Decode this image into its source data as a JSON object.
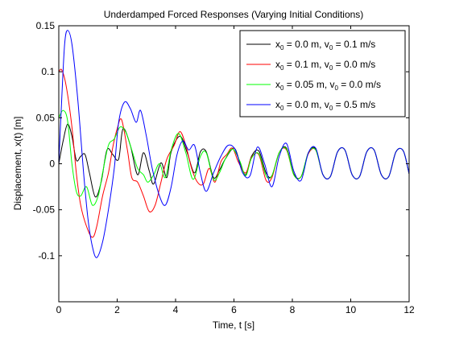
{
  "chart_data": {
    "type": "line",
    "title": "Underdamped Forced Responses (Varying Initial Conditions)",
    "xlabel": "Time, t [s]",
    "ylabel": "Displacement, x(t) [m]",
    "xlim": [
      0,
      12
    ],
    "ylim": [
      -0.15,
      0.15
    ],
    "x_ticks": [
      0,
      2,
      4,
      6,
      8,
      10,
      12
    ],
    "x_tick_labels": [
      "0",
      "2",
      "4",
      "6",
      "8",
      "10",
      "12"
    ],
    "y_ticks": [
      -0.1,
      -0.05,
      0,
      0.05,
      0.1,
      0.15
    ],
    "y_tick_labels": [
      "-0.1",
      "-0.05",
      "0",
      "0.05",
      "0.1",
      "0.15"
    ],
    "grid": false,
    "legend_position": "top-right",
    "colors": [
      "#000000",
      "#ff0000",
      "#00ff00",
      "#0000ff"
    ],
    "legend": [
      {
        "color": "#000000",
        "parts": [
          [
            "x",
            ""
          ],
          [
            "0",
            "sub"
          ],
          [
            " = 0.0 m, v",
            ""
          ],
          [
            "0",
            "sub"
          ],
          [
            " = 0.1 m/s",
            ""
          ]
        ]
      },
      {
        "color": "#ff0000",
        "parts": [
          [
            "x",
            ""
          ],
          [
            "0",
            "sub"
          ],
          [
            " = 0.1 m, v",
            ""
          ],
          [
            "0",
            "sub"
          ],
          [
            " = 0.0 m/s",
            ""
          ]
        ]
      },
      {
        "color": "#00ff00",
        "parts": [
          [
            "x",
            ""
          ],
          [
            "0",
            "sub"
          ],
          [
            " = 0.05 m, v",
            ""
          ],
          [
            "0",
            "sub"
          ],
          [
            " = 0.0 m/s",
            ""
          ]
        ]
      },
      {
        "color": "#0000ff",
        "parts": [
          [
            "x",
            ""
          ],
          [
            "0",
            "sub"
          ],
          [
            " = 0.0 m, v",
            ""
          ],
          [
            "0",
            "sub"
          ],
          [
            " = 0.5 m/s",
            ""
          ]
        ]
      }
    ],
    "series": [
      {
        "color": "#000000",
        "x0": 0.0,
        "v0": 0.1,
        "points": [
          [
            0,
            0
          ],
          [
            0.15,
            0.025
          ],
          [
            0.3,
            0.043
          ],
          [
            0.45,
            0.03
          ],
          [
            0.6,
            0.004
          ],
          [
            0.75,
            0.008
          ],
          [
            0.9,
            0.01
          ],
          [
            1.05,
            -0.01
          ],
          [
            1.25,
            -0.036
          ],
          [
            1.45,
            -0.02
          ],
          [
            1.65,
            0.015
          ],
          [
            1.85,
            0.01
          ],
          [
            2.05,
            0.005
          ],
          [
            2.2,
            0.038
          ],
          [
            2.45,
            0.02
          ],
          [
            2.7,
            -0.012
          ],
          [
            2.9,
            0.012
          ],
          [
            3.1,
            -0.008
          ],
          [
            3.25,
            -0.022
          ],
          [
            3.5,
            0.001
          ],
          [
            3.7,
            -0.015
          ],
          [
            3.85,
            0.013
          ],
          [
            4.15,
            0.03
          ],
          [
            4.4,
            0.012
          ],
          [
            4.65,
            -0.01
          ],
          [
            4.85,
            0.013
          ],
          [
            5.05,
            0.013
          ],
          [
            5.3,
            -0.015
          ],
          [
            5.5,
            -0.007
          ],
          [
            5.7,
            0.005
          ],
          [
            6.0,
            0.017
          ],
          [
            6.2,
            0.002
          ],
          [
            6.4,
            -0.012
          ],
          [
            6.6,
            0.008
          ],
          [
            6.85,
            0.014
          ],
          [
            7.1,
            -0.01
          ],
          [
            7.3,
            -0.013
          ],
          [
            7.55,
            0.012
          ],
          [
            7.8,
            0.017
          ],
          [
            8.05,
            -0.011
          ],
          [
            8.3,
            -0.014
          ],
          [
            8.55,
            0.012
          ],
          [
            8.8,
            0.016
          ],
          [
            9.05,
            -0.012
          ],
          [
            9.3,
            -0.014
          ],
          [
            9.55,
            0.013
          ],
          [
            9.8,
            0.015
          ],
          [
            10.05,
            -0.012
          ],
          [
            10.3,
            -0.014
          ],
          [
            10.55,
            0.013
          ],
          [
            10.8,
            0.015
          ],
          [
            11.05,
            -0.012
          ],
          [
            11.3,
            -0.014
          ],
          [
            11.55,
            0.013
          ],
          [
            11.8,
            0.014
          ],
          [
            12.0,
            -0.011
          ]
        ]
      },
      {
        "color": "#ff0000",
        "x0": 0.1,
        "v0": 0.0,
        "points": [
          [
            0,
            0.1
          ],
          [
            0.1,
            0.102
          ],
          [
            0.25,
            0.085
          ],
          [
            0.45,
            0.04
          ],
          [
            0.6,
            -0.01
          ],
          [
            0.75,
            -0.045
          ],
          [
            0.95,
            -0.068
          ],
          [
            1.15,
            -0.08
          ],
          [
            1.3,
            -0.068
          ],
          [
            1.5,
            -0.035
          ],
          [
            1.7,
            -0.01
          ],
          [
            1.85,
            0.018
          ],
          [
            2.0,
            0.038
          ],
          [
            2.15,
            0.048
          ],
          [
            2.35,
            0.015
          ],
          [
            2.5,
            -0.015
          ],
          [
            2.7,
            -0.02
          ],
          [
            2.9,
            -0.035
          ],
          [
            3.1,
            -0.052
          ],
          [
            3.3,
            -0.045
          ],
          [
            3.5,
            -0.02
          ],
          [
            3.7,
            0.005
          ],
          [
            3.95,
            0.02
          ],
          [
            4.15,
            0.035
          ],
          [
            4.35,
            0.02
          ],
          [
            4.55,
            -0.005
          ],
          [
            4.75,
            -0.02
          ],
          [
            4.95,
            -0.022
          ],
          [
            5.15,
            -0.005
          ],
          [
            5.35,
            -0.02
          ],
          [
            5.55,
            0.002
          ],
          [
            5.75,
            0.01
          ],
          [
            5.95,
            0.017
          ],
          [
            6.15,
            0.002
          ],
          [
            6.4,
            -0.01
          ],
          [
            6.6,
            0.007
          ],
          [
            6.85,
            0.01
          ],
          [
            7.1,
            -0.018
          ],
          [
            7.3,
            -0.015
          ],
          [
            7.55,
            0.012
          ],
          [
            7.8,
            0.015
          ],
          [
            8.05,
            -0.012
          ],
          [
            8.3,
            -0.014
          ],
          [
            8.55,
            0.011
          ],
          [
            8.8,
            0.015
          ],
          [
            9.05,
            -0.012
          ],
          [
            9.3,
            -0.014
          ],
          [
            9.55,
            0.013
          ],
          [
            9.8,
            0.015
          ],
          [
            10.05,
            -0.012
          ],
          [
            10.3,
            -0.014
          ],
          [
            10.55,
            0.013
          ],
          [
            10.8,
            0.015
          ],
          [
            11.05,
            -0.012
          ],
          [
            11.3,
            -0.014
          ],
          [
            11.55,
            0.013
          ],
          [
            11.8,
            0.014
          ],
          [
            12.0,
            -0.011
          ]
        ]
      },
      {
        "color": "#00ff00",
        "x0": 0.05,
        "v0": 0.0,
        "points": [
          [
            0,
            0.05
          ],
          [
            0.15,
            0.058
          ],
          [
            0.3,
            0.047
          ],
          [
            0.45,
            0.0
          ],
          [
            0.6,
            -0.03
          ],
          [
            0.75,
            -0.035
          ],
          [
            0.95,
            -0.025
          ],
          [
            1.15,
            -0.045
          ],
          [
            1.35,
            -0.035
          ],
          [
            1.5,
            -0.01
          ],
          [
            1.7,
            0.02
          ],
          [
            1.9,
            0.027
          ],
          [
            2.1,
            0.04
          ],
          [
            2.3,
            0.034
          ],
          [
            2.5,
            0.015
          ],
          [
            2.7,
            -0.005
          ],
          [
            2.9,
            -0.012
          ],
          [
            3.05,
            -0.02
          ],
          [
            3.25,
            -0.012
          ],
          [
            3.45,
            0.0
          ],
          [
            3.65,
            -0.015
          ],
          [
            3.85,
            0.015
          ],
          [
            4.1,
            0.033
          ],
          [
            4.35,
            0.012
          ],
          [
            4.6,
            -0.017
          ],
          [
            4.85,
            0.008
          ],
          [
            5.05,
            0.012
          ],
          [
            5.3,
            -0.017
          ],
          [
            5.5,
            -0.01
          ],
          [
            5.7,
            0.005
          ],
          [
            5.95,
            0.016
          ],
          [
            6.2,
            0.003
          ],
          [
            6.4,
            -0.013
          ],
          [
            6.6,
            0.006
          ],
          [
            6.85,
            0.011
          ],
          [
            7.1,
            -0.013
          ],
          [
            7.3,
            -0.013
          ],
          [
            7.55,
            0.012
          ],
          [
            7.8,
            0.016
          ],
          [
            8.05,
            -0.012
          ],
          [
            8.3,
            -0.014
          ],
          [
            8.55,
            0.012
          ],
          [
            8.8,
            0.015
          ],
          [
            9.05,
            -0.012
          ],
          [
            9.3,
            -0.014
          ],
          [
            9.55,
            0.013
          ],
          [
            9.8,
            0.015
          ],
          [
            10.05,
            -0.012
          ],
          [
            10.3,
            -0.014
          ],
          [
            10.55,
            0.013
          ],
          [
            10.8,
            0.015
          ],
          [
            11.05,
            -0.012
          ],
          [
            11.3,
            -0.014
          ],
          [
            11.55,
            0.013
          ],
          [
            11.8,
            0.014
          ],
          [
            12.0,
            -0.011
          ]
        ]
      },
      {
        "color": "#0000ff",
        "x0": 0.0,
        "v0": 0.5,
        "points": [
          [
            0,
            0
          ],
          [
            0.1,
            0.07
          ],
          [
            0.2,
            0.13
          ],
          [
            0.3,
            0.145
          ],
          [
            0.45,
            0.13
          ],
          [
            0.65,
            0.07
          ],
          [
            0.85,
            -0.01
          ],
          [
            1.0,
            -0.06
          ],
          [
            1.15,
            -0.09
          ],
          [
            1.3,
            -0.102
          ],
          [
            1.5,
            -0.085
          ],
          [
            1.7,
            -0.05
          ],
          [
            1.9,
            -0.005
          ],
          [
            2.05,
            0.045
          ],
          [
            2.25,
            0.067
          ],
          [
            2.45,
            0.06
          ],
          [
            2.65,
            0.045
          ],
          [
            2.8,
            0.058
          ],
          [
            3.0,
            0.03
          ],
          [
            3.2,
            -0.005
          ],
          [
            3.45,
            -0.035
          ],
          [
            3.65,
            -0.045
          ],
          [
            3.85,
            -0.025
          ],
          [
            4.05,
            0.01
          ],
          [
            4.25,
            0.025
          ],
          [
            4.45,
            0.015
          ],
          [
            4.65,
            0.02
          ],
          [
            4.85,
            -0.01
          ],
          [
            5.05,
            -0.03
          ],
          [
            5.3,
            -0.01
          ],
          [
            5.55,
            0.008
          ],
          [
            5.8,
            0.02
          ],
          [
            6.05,
            0.015
          ],
          [
            6.3,
            -0.01
          ],
          [
            6.55,
            -0.013
          ],
          [
            6.8,
            0.018
          ],
          [
            7.05,
            0.0
          ],
          [
            7.3,
            -0.025
          ],
          [
            7.55,
            0.008
          ],
          [
            7.8,
            0.022
          ],
          [
            8.05,
            -0.008
          ],
          [
            8.3,
            -0.018
          ],
          [
            8.55,
            0.012
          ],
          [
            8.8,
            0.017
          ],
          [
            9.05,
            -0.012
          ],
          [
            9.3,
            -0.014
          ],
          [
            9.55,
            0.013
          ],
          [
            9.8,
            0.015
          ],
          [
            10.05,
            -0.012
          ],
          [
            10.3,
            -0.014
          ],
          [
            10.55,
            0.013
          ],
          [
            10.8,
            0.015
          ],
          [
            11.05,
            -0.012
          ],
          [
            11.3,
            -0.014
          ],
          [
            11.55,
            0.013
          ],
          [
            11.8,
            0.014
          ],
          [
            12.0,
            -0.011
          ]
        ]
      }
    ]
  }
}
